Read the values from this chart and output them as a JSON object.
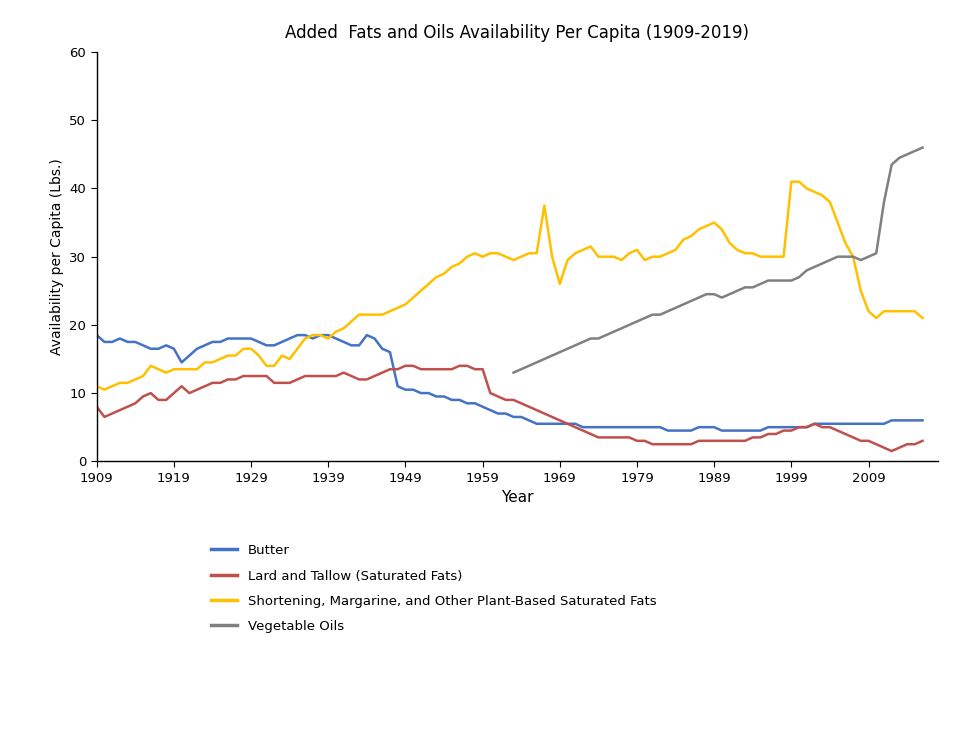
{
  "title": "Added  Fats and Oils Availability Per Capita (1909-2019)",
  "xlabel": "Year",
  "ylabel": "Availability per Capita (Lbs.)",
  "ylim": [
    0,
    60
  ],
  "xlim": [
    1909,
    2018
  ],
  "xticks": [
    1909,
    1919,
    1929,
    1939,
    1949,
    1959,
    1969,
    1979,
    1989,
    1999,
    2009
  ],
  "yticks": [
    0,
    10,
    20,
    30,
    40,
    50,
    60
  ],
  "legend_labels": [
    "Butter",
    "Lard and Tallow (Saturated Fats)",
    "Shortening, Margarine, and Other Plant-Based Saturated Fats",
    "Vegetable Oils"
  ],
  "butter_color": "#4472C4",
  "lard_color": "#C0504D",
  "shortening_color": "#FFC000",
  "veg_color": "#808080",
  "butter_years": [
    1909,
    1910,
    1911,
    1912,
    1913,
    1914,
    1915,
    1916,
    1917,
    1918,
    1919,
    1920,
    1921,
    1922,
    1923,
    1924,
    1925,
    1926,
    1927,
    1928,
    1929,
    1930,
    1931,
    1932,
    1933,
    1934,
    1935,
    1936,
    1937,
    1938,
    1939,
    1940,
    1941,
    1942,
    1943,
    1944,
    1945,
    1946,
    1947,
    1948,
    1949,
    1950,
    1951,
    1952,
    1953,
    1954,
    1955,
    1956,
    1957,
    1958,
    1959,
    1960,
    1961,
    1962,
    1963,
    1964,
    1965,
    1966,
    1967,
    1968,
    1969,
    1970,
    1971,
    1972,
    1973,
    1974,
    1975,
    1976,
    1977,
    1978,
    1979,
    1980,
    1981,
    1982,
    1983,
    1984,
    1985,
    1986,
    1987,
    1988,
    1989,
    1990,
    1991,
    1992,
    1993,
    1994,
    1995,
    1996,
    1997,
    1998,
    1999,
    2000,
    2001,
    2002,
    2003,
    2004,
    2005,
    2006,
    2007,
    2008,
    2009,
    2010,
    2011,
    2012,
    2013,
    2014,
    2015,
    2016
  ],
  "butter_values": [
    18.5,
    17.5,
    17.5,
    18.0,
    17.5,
    17.5,
    17.0,
    16.5,
    16.5,
    17.0,
    16.5,
    14.5,
    15.5,
    16.5,
    17.0,
    17.5,
    17.5,
    18.0,
    18.0,
    18.0,
    18.0,
    17.5,
    17.0,
    17.0,
    17.5,
    18.0,
    18.5,
    18.5,
    18.0,
    18.5,
    18.5,
    18.0,
    17.5,
    17.0,
    17.0,
    18.5,
    18.0,
    16.5,
    16.0,
    11.0,
    10.5,
    10.5,
    10.0,
    10.0,
    9.5,
    9.5,
    9.0,
    9.0,
    8.5,
    8.5,
    8.0,
    7.5,
    7.0,
    7.0,
    6.5,
    6.5,
    6.0,
    5.5,
    5.5,
    5.5,
    5.5,
    5.5,
    5.5,
    5.0,
    5.0,
    5.0,
    5.0,
    5.0,
    5.0,
    5.0,
    5.0,
    5.0,
    5.0,
    5.0,
    4.5,
    4.5,
    4.5,
    4.5,
    5.0,
    5.0,
    5.0,
    4.5,
    4.5,
    4.5,
    4.5,
    4.5,
    4.5,
    5.0,
    5.0,
    5.0,
    5.0,
    5.0,
    5.0,
    5.5,
    5.5,
    5.5,
    5.5,
    5.5,
    5.5,
    5.5,
    5.5,
    5.5,
    5.5,
    6.0,
    6.0,
    6.0,
    6.0,
    6.0
  ],
  "lard_years": [
    1909,
    1910,
    1911,
    1912,
    1913,
    1914,
    1915,
    1916,
    1917,
    1918,
    1919,
    1920,
    1921,
    1922,
    1923,
    1924,
    1925,
    1926,
    1927,
    1928,
    1929,
    1930,
    1931,
    1932,
    1933,
    1934,
    1935,
    1936,
    1937,
    1938,
    1939,
    1940,
    1941,
    1942,
    1943,
    1944,
    1945,
    1946,
    1947,
    1948,
    1949,
    1950,
    1951,
    1952,
    1953,
    1954,
    1955,
    1956,
    1957,
    1958,
    1959,
    1960,
    1961,
    1962,
    1963,
    1964,
    1965,
    1966,
    1967,
    1968,
    1969,
    1970,
    1971,
    1972,
    1973,
    1974,
    1975,
    1976,
    1977,
    1978,
    1979,
    1980,
    1981,
    1982,
    1983,
    1984,
    1985,
    1986,
    1987,
    1988,
    1989,
    1990,
    1991,
    1992,
    1993,
    1994,
    1995,
    1996,
    1997,
    1998,
    1999,
    2000,
    2001,
    2002,
    2003,
    2004,
    2005,
    2006,
    2007,
    2008,
    2009,
    2010,
    2011,
    2012,
    2013,
    2014,
    2015,
    2016
  ],
  "lard_values": [
    8.0,
    6.5,
    7.0,
    7.5,
    8.0,
    8.5,
    9.5,
    10.0,
    9.0,
    9.0,
    10.0,
    11.0,
    10.0,
    10.5,
    11.0,
    11.5,
    11.5,
    12.0,
    12.0,
    12.5,
    12.5,
    12.5,
    12.5,
    11.5,
    11.5,
    11.5,
    12.0,
    12.5,
    12.5,
    12.5,
    12.5,
    12.5,
    13.0,
    12.5,
    12.0,
    12.0,
    12.5,
    13.0,
    13.5,
    13.5,
    14.0,
    14.0,
    13.5,
    13.5,
    13.5,
    13.5,
    13.5,
    14.0,
    14.0,
    13.5,
    13.5,
    10.0,
    9.5,
    9.0,
    9.0,
    8.5,
    8.0,
    7.5,
    7.0,
    6.5,
    6.0,
    5.5,
    5.0,
    4.5,
    4.0,
    3.5,
    3.5,
    3.5,
    3.5,
    3.5,
    3.0,
    3.0,
    2.5,
    2.5,
    2.5,
    2.5,
    2.5,
    2.5,
    3.0,
    3.0,
    3.0,
    3.0,
    3.0,
    3.0,
    3.0,
    3.5,
    3.5,
    4.0,
    4.0,
    4.5,
    4.5,
    5.0,
    5.0,
    5.5,
    5.0,
    5.0,
    4.5,
    4.0,
    3.5,
    3.0,
    3.0,
    2.5,
    2.0,
    1.5,
    2.0,
    2.5,
    2.5,
    3.0
  ],
  "shortening_years": [
    1909,
    1910,
    1911,
    1912,
    1913,
    1914,
    1915,
    1916,
    1917,
    1918,
    1919,
    1920,
    1921,
    1922,
    1923,
    1924,
    1925,
    1926,
    1927,
    1928,
    1929,
    1930,
    1931,
    1932,
    1933,
    1934,
    1935,
    1936,
    1937,
    1938,
    1939,
    1940,
    1941,
    1942,
    1943,
    1944,
    1945,
    1946,
    1947,
    1948,
    1949,
    1950,
    1951,
    1952,
    1953,
    1954,
    1955,
    1956,
    1957,
    1958,
    1959,
    1960,
    1961,
    1962,
    1963,
    1964,
    1965,
    1966,
    1967,
    1968,
    1969,
    1970,
    1971,
    1972,
    1973,
    1974,
    1975,
    1976,
    1977,
    1978,
    1979,
    1980,
    1981,
    1982,
    1983,
    1984,
    1985,
    1986,
    1987,
    1988,
    1989,
    1990,
    1991,
    1992,
    1993,
    1994,
    1995,
    1996,
    1997,
    1998,
    1999,
    2000,
    2001,
    2002,
    2003,
    2004,
    2005,
    2006,
    2007,
    2008,
    2009,
    2010,
    2011,
    2012,
    2013,
    2014,
    2015,
    2016
  ],
  "shortening_values": [
    11.0,
    10.5,
    11.0,
    11.5,
    11.5,
    12.0,
    12.5,
    14.0,
    13.5,
    13.0,
    13.5,
    13.5,
    13.5,
    13.5,
    14.5,
    14.5,
    15.0,
    15.5,
    15.5,
    16.5,
    16.5,
    15.5,
    14.0,
    14.0,
    15.5,
    15.0,
    16.5,
    18.0,
    18.5,
    18.5,
    18.0,
    19.0,
    19.5,
    20.5,
    21.5,
    21.5,
    21.5,
    21.5,
    22.0,
    22.5,
    23.0,
    24.0,
    25.0,
    26.0,
    27.0,
    27.5,
    28.5,
    29.0,
    30.0,
    30.5,
    30.0,
    30.5,
    30.5,
    30.0,
    29.5,
    30.0,
    30.5,
    30.5,
    37.5,
    30.0,
    26.0,
    29.5,
    30.5,
    31.0,
    31.5,
    30.0,
    30.0,
    30.0,
    29.5,
    30.5,
    31.0,
    29.5,
    30.0,
    30.0,
    30.5,
    31.0,
    32.5,
    33.0,
    34.0,
    34.5,
    35.0,
    34.0,
    32.0,
    31.0,
    30.5,
    30.5,
    30.0,
    30.0,
    30.0,
    30.0,
    41.0,
    41.0,
    40.0,
    39.5,
    39.0,
    38.0,
    35.0,
    32.0,
    30.0,
    25.0,
    22.0,
    21.0,
    22.0,
    22.0,
    22.0,
    22.0,
    22.0,
    21.0
  ],
  "veg_years": [
    1963,
    1964,
    1965,
    1966,
    1967,
    1968,
    1969,
    1970,
    1971,
    1972,
    1973,
    1974,
    1975,
    1976,
    1977,
    1978,
    1979,
    1980,
    1981,
    1982,
    1983,
    1984,
    1985,
    1986,
    1987,
    1988,
    1989,
    1990,
    1991,
    1992,
    1993,
    1994,
    1995,
    1996,
    1997,
    1998,
    1999,
    2000,
    2001,
    2002,
    2003,
    2004,
    2005,
    2006,
    2007,
    2008,
    2009,
    2010,
    2011,
    2012,
    2013,
    2014,
    2015,
    2016
  ],
  "veg_values": [
    13.0,
    13.5,
    14.0,
    14.5,
    15.0,
    15.5,
    16.0,
    16.5,
    17.0,
    17.5,
    18.0,
    18.0,
    18.5,
    19.0,
    19.5,
    20.0,
    20.5,
    21.0,
    21.5,
    21.5,
    22.0,
    22.5,
    23.0,
    23.5,
    24.0,
    24.5,
    24.5,
    24.0,
    24.5,
    25.0,
    25.5,
    25.5,
    26.0,
    26.5,
    26.5,
    26.5,
    26.5,
    27.0,
    28.0,
    28.5,
    29.0,
    29.5,
    30.0,
    30.0,
    30.0,
    29.5,
    30.0,
    30.5,
    38.0,
    43.5,
    44.5,
    45.0,
    45.5,
    46.0
  ]
}
